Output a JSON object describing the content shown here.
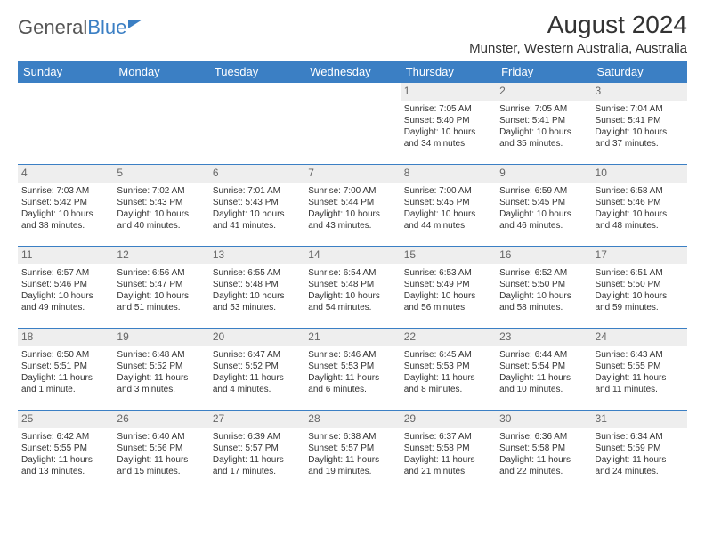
{
  "colors": {
    "header_bg": "#3b7fc4",
    "header_text": "#ffffff",
    "daynum_bg": "#eeeeee",
    "border": "#3b7fc4",
    "text": "#333333"
  },
  "logo": {
    "text1": "General",
    "text2": "Blue"
  },
  "title": "August 2024",
  "location": "Munster, Western Australia, Australia",
  "weekdays": [
    "Sunday",
    "Monday",
    "Tuesday",
    "Wednesday",
    "Thursday",
    "Friday",
    "Saturday"
  ],
  "weeks": [
    [
      null,
      null,
      null,
      null,
      {
        "n": "1",
        "sr": "Sunrise: 7:05 AM",
        "ss": "Sunset: 5:40 PM",
        "d1": "Daylight: 10 hours",
        "d2": "and 34 minutes."
      },
      {
        "n": "2",
        "sr": "Sunrise: 7:05 AM",
        "ss": "Sunset: 5:41 PM",
        "d1": "Daylight: 10 hours",
        "d2": "and 35 minutes."
      },
      {
        "n": "3",
        "sr": "Sunrise: 7:04 AM",
        "ss": "Sunset: 5:41 PM",
        "d1": "Daylight: 10 hours",
        "d2": "and 37 minutes."
      }
    ],
    [
      {
        "n": "4",
        "sr": "Sunrise: 7:03 AM",
        "ss": "Sunset: 5:42 PM",
        "d1": "Daylight: 10 hours",
        "d2": "and 38 minutes."
      },
      {
        "n": "5",
        "sr": "Sunrise: 7:02 AM",
        "ss": "Sunset: 5:43 PM",
        "d1": "Daylight: 10 hours",
        "d2": "and 40 minutes."
      },
      {
        "n": "6",
        "sr": "Sunrise: 7:01 AM",
        "ss": "Sunset: 5:43 PM",
        "d1": "Daylight: 10 hours",
        "d2": "and 41 minutes."
      },
      {
        "n": "7",
        "sr": "Sunrise: 7:00 AM",
        "ss": "Sunset: 5:44 PM",
        "d1": "Daylight: 10 hours",
        "d2": "and 43 minutes."
      },
      {
        "n": "8",
        "sr": "Sunrise: 7:00 AM",
        "ss": "Sunset: 5:45 PM",
        "d1": "Daylight: 10 hours",
        "d2": "and 44 minutes."
      },
      {
        "n": "9",
        "sr": "Sunrise: 6:59 AM",
        "ss": "Sunset: 5:45 PM",
        "d1": "Daylight: 10 hours",
        "d2": "and 46 minutes."
      },
      {
        "n": "10",
        "sr": "Sunrise: 6:58 AM",
        "ss": "Sunset: 5:46 PM",
        "d1": "Daylight: 10 hours",
        "d2": "and 48 minutes."
      }
    ],
    [
      {
        "n": "11",
        "sr": "Sunrise: 6:57 AM",
        "ss": "Sunset: 5:46 PM",
        "d1": "Daylight: 10 hours",
        "d2": "and 49 minutes."
      },
      {
        "n": "12",
        "sr": "Sunrise: 6:56 AM",
        "ss": "Sunset: 5:47 PM",
        "d1": "Daylight: 10 hours",
        "d2": "and 51 minutes."
      },
      {
        "n": "13",
        "sr": "Sunrise: 6:55 AM",
        "ss": "Sunset: 5:48 PM",
        "d1": "Daylight: 10 hours",
        "d2": "and 53 minutes."
      },
      {
        "n": "14",
        "sr": "Sunrise: 6:54 AM",
        "ss": "Sunset: 5:48 PM",
        "d1": "Daylight: 10 hours",
        "d2": "and 54 minutes."
      },
      {
        "n": "15",
        "sr": "Sunrise: 6:53 AM",
        "ss": "Sunset: 5:49 PM",
        "d1": "Daylight: 10 hours",
        "d2": "and 56 minutes."
      },
      {
        "n": "16",
        "sr": "Sunrise: 6:52 AM",
        "ss": "Sunset: 5:50 PM",
        "d1": "Daylight: 10 hours",
        "d2": "and 58 minutes."
      },
      {
        "n": "17",
        "sr": "Sunrise: 6:51 AM",
        "ss": "Sunset: 5:50 PM",
        "d1": "Daylight: 10 hours",
        "d2": "and 59 minutes."
      }
    ],
    [
      {
        "n": "18",
        "sr": "Sunrise: 6:50 AM",
        "ss": "Sunset: 5:51 PM",
        "d1": "Daylight: 11 hours",
        "d2": "and 1 minute."
      },
      {
        "n": "19",
        "sr": "Sunrise: 6:48 AM",
        "ss": "Sunset: 5:52 PM",
        "d1": "Daylight: 11 hours",
        "d2": "and 3 minutes."
      },
      {
        "n": "20",
        "sr": "Sunrise: 6:47 AM",
        "ss": "Sunset: 5:52 PM",
        "d1": "Daylight: 11 hours",
        "d2": "and 4 minutes."
      },
      {
        "n": "21",
        "sr": "Sunrise: 6:46 AM",
        "ss": "Sunset: 5:53 PM",
        "d1": "Daylight: 11 hours",
        "d2": "and 6 minutes."
      },
      {
        "n": "22",
        "sr": "Sunrise: 6:45 AM",
        "ss": "Sunset: 5:53 PM",
        "d1": "Daylight: 11 hours",
        "d2": "and 8 minutes."
      },
      {
        "n": "23",
        "sr": "Sunrise: 6:44 AM",
        "ss": "Sunset: 5:54 PM",
        "d1": "Daylight: 11 hours",
        "d2": "and 10 minutes."
      },
      {
        "n": "24",
        "sr": "Sunrise: 6:43 AM",
        "ss": "Sunset: 5:55 PM",
        "d1": "Daylight: 11 hours",
        "d2": "and 11 minutes."
      }
    ],
    [
      {
        "n": "25",
        "sr": "Sunrise: 6:42 AM",
        "ss": "Sunset: 5:55 PM",
        "d1": "Daylight: 11 hours",
        "d2": "and 13 minutes."
      },
      {
        "n": "26",
        "sr": "Sunrise: 6:40 AM",
        "ss": "Sunset: 5:56 PM",
        "d1": "Daylight: 11 hours",
        "d2": "and 15 minutes."
      },
      {
        "n": "27",
        "sr": "Sunrise: 6:39 AM",
        "ss": "Sunset: 5:57 PM",
        "d1": "Daylight: 11 hours",
        "d2": "and 17 minutes."
      },
      {
        "n": "28",
        "sr": "Sunrise: 6:38 AM",
        "ss": "Sunset: 5:57 PM",
        "d1": "Daylight: 11 hours",
        "d2": "and 19 minutes."
      },
      {
        "n": "29",
        "sr": "Sunrise: 6:37 AM",
        "ss": "Sunset: 5:58 PM",
        "d1": "Daylight: 11 hours",
        "d2": "and 21 minutes."
      },
      {
        "n": "30",
        "sr": "Sunrise: 6:36 AM",
        "ss": "Sunset: 5:58 PM",
        "d1": "Daylight: 11 hours",
        "d2": "and 22 minutes."
      },
      {
        "n": "31",
        "sr": "Sunrise: 6:34 AM",
        "ss": "Sunset: 5:59 PM",
        "d1": "Daylight: 11 hours",
        "d2": "and 24 minutes."
      }
    ]
  ]
}
